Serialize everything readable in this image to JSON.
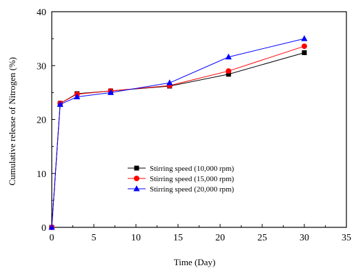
{
  "chart_data": {
    "type": "line",
    "xlabel": "Time (Day)",
    "ylabel": "Cumulative release of Nitrogen (%)",
    "xlim": [
      0,
      35
    ],
    "ylim": [
      0,
      40
    ],
    "xticks": [
      0,
      5,
      10,
      15,
      20,
      25,
      30,
      35
    ],
    "yticks": [
      0,
      10,
      20,
      30,
      40
    ],
    "x": [
      0,
      1,
      3,
      7,
      14,
      21,
      30
    ],
    "legend_position": "center",
    "grid": false,
    "series": [
      {
        "name": "Stirring speed (10,000 rpm)",
        "values": [
          0,
          23.0,
          24.8,
          25.3,
          26.2,
          28.4,
          32.4
        ],
        "color": "#000000",
        "marker": "square"
      },
      {
        "name": "Stirring speed (15,000 rpm)",
        "values": [
          0,
          23.0,
          24.7,
          25.3,
          26.3,
          29.0,
          33.6
        ],
        "color": "#ff0000",
        "marker": "circle"
      },
      {
        "name": "Stirring speed (20,000 rpm)",
        "values": [
          0,
          22.8,
          24.2,
          25.0,
          26.8,
          31.6,
          35.0
        ],
        "color": "#0000ff",
        "marker": "triangle"
      }
    ]
  }
}
